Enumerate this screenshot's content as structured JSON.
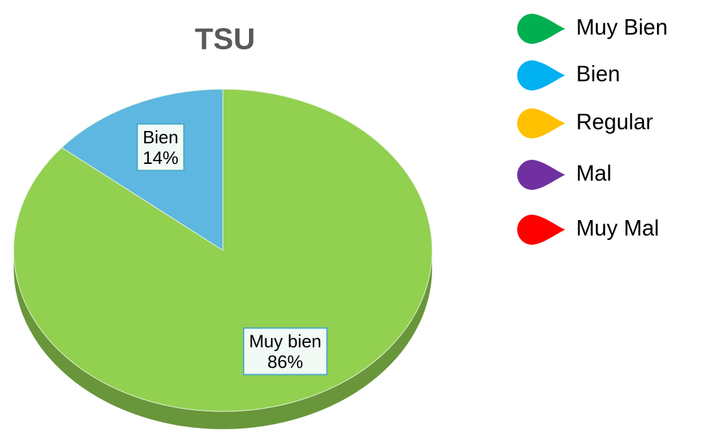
{
  "chart_data": {
    "type": "pie",
    "title": "TSU",
    "categories": [
      "Muy Bien",
      "Bien",
      "Regular",
      "Mal",
      "Muy Mal"
    ],
    "values": [
      86,
      14,
      0,
      0,
      0
    ],
    "value_labels": [
      "86%",
      "14%",
      null,
      null,
      null
    ],
    "data_label_names": [
      "Muy bien",
      "Bien",
      null,
      null,
      null
    ],
    "colors": [
      "#00b050",
      "#00b0f0",
      "#ffc000",
      "#7030a0",
      "#ff0000"
    ],
    "slice_colors": [
      "#92d050",
      "#5db7e0",
      "#ffc000",
      "#7030a0",
      "#ff0000"
    ],
    "legend": "right"
  }
}
